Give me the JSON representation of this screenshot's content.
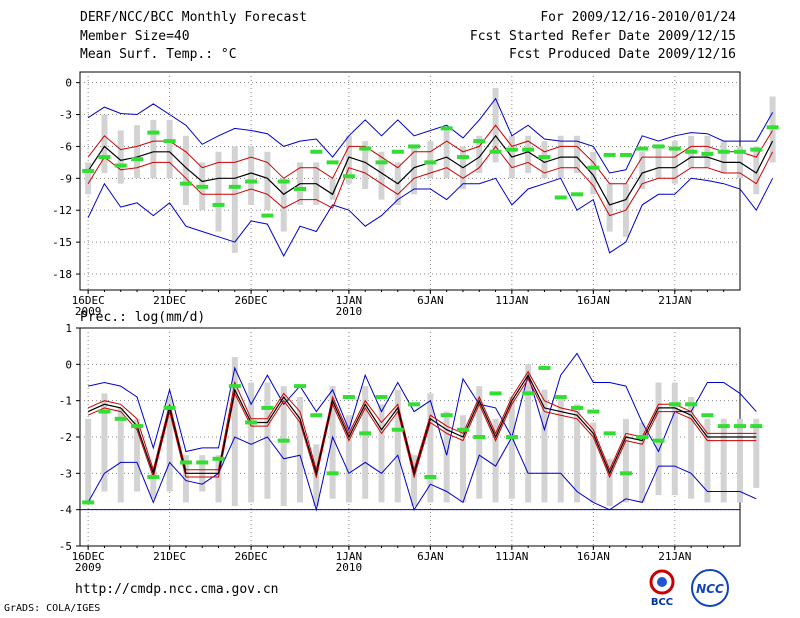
{
  "header": {
    "title": "DERF/NCC/BCC Monthly Forecast",
    "member_size": "Member Size=40",
    "forecast_period": "For 2009/12/16-2010/01/24",
    "started_refer_date": "Fcst Started Refer Date 2009/12/15",
    "produced_date": "Fcst Produced Date 2009/12/16"
  },
  "footer": {
    "url": "http://cmdp.ncc.cma.gov.cn",
    "grads_credit": "GrADS: COLA/IGES",
    "logo_bcc": "BCC",
    "logo_ncc": "NCC"
  },
  "colors": {
    "max_min": "#0000cc",
    "spread": "#cc0000",
    "mean": "#000000",
    "obs": "#33dd33",
    "box": "#d3d3d3",
    "grid": "#888888"
  },
  "chart_data": [
    {
      "type": "line",
      "ylabel": "Mean Surf. Temp.: °C",
      "ylim": [
        -19.5,
        1.0
      ],
      "yticks": [
        0,
        -3,
        -6,
        -9,
        -12,
        -15,
        -18
      ],
      "xlim": [
        0.5,
        41.0
      ],
      "xticks": [
        {
          "pos": 1,
          "label": "16DEC",
          "sub": "2009"
        },
        {
          "pos": 6,
          "label": "21DEC"
        },
        {
          "pos": 11,
          "label": "26DEC"
        },
        {
          "pos": 17,
          "label": "1JAN",
          "sub": "2010"
        },
        {
          "pos": 22,
          "label": "6JAN"
        },
        {
          "pos": 27,
          "label": "11JAN"
        },
        {
          "pos": 32,
          "label": "16JAN"
        },
        {
          "pos": 37,
          "label": "21JAN"
        }
      ],
      "series": [
        {
          "name": "max",
          "values": [
            -3.3,
            -2.3,
            -2.9,
            -3.0,
            -2.0,
            -3.0,
            -4.0,
            -5.8,
            -5.0,
            -4.3,
            -4.5,
            -4.8,
            -6.0,
            -5.5,
            -5.3,
            -7.0,
            -5.0,
            -3.5,
            -5.0,
            -3.5,
            -5.0,
            -4.5,
            -4.0,
            -5.2,
            -3.5,
            -1.5,
            -5.0,
            -4.0,
            -5.3,
            -5.5,
            -5.5,
            -6.0,
            -8.5,
            -8.2,
            -5.0,
            -5.5,
            -5.0,
            -4.7,
            -4.8,
            -5.5,
            -5.5,
            -5.5,
            -2.8
          ]
        },
        {
          "name": "spread_upper",
          "values": [
            -7.0,
            -5.0,
            -6.3,
            -6.0,
            -5.5,
            -5.5,
            -6.5,
            -8.0,
            -7.5,
            -7.5,
            -7.0,
            -7.5,
            -9.0,
            -8.0,
            -8.0,
            -9.0,
            -6.0,
            -6.0,
            -7.0,
            -8.0,
            -6.5,
            -6.5,
            -5.5,
            -6.5,
            -6.0,
            -4.0,
            -6.0,
            -5.5,
            -6.5,
            -6.0,
            -6.0,
            -7.5,
            -9.5,
            -9.5,
            -7.0,
            -7.0,
            -7.0,
            -6.0,
            -6.0,
            -6.5,
            -6.5,
            -7.0,
            -4.5
          ]
        },
        {
          "name": "mean",
          "values": [
            -8.3,
            -6.0,
            -7.3,
            -7.0,
            -6.5,
            -6.5,
            -8.0,
            -9.3,
            -9.0,
            -9.0,
            -8.5,
            -9.0,
            -10.5,
            -9.5,
            -9.5,
            -10.5,
            -7.0,
            -7.5,
            -8.5,
            -9.5,
            -8.0,
            -7.5,
            -7.0,
            -8.0,
            -7.0,
            -5.0,
            -7.0,
            -6.5,
            -7.5,
            -7.0,
            -7.0,
            -8.7,
            -11.5,
            -11.0,
            -8.5,
            -8.0,
            -8.0,
            -7.0,
            -7.0,
            -7.5,
            -7.5,
            -8.5,
            -5.5
          ]
        },
        {
          "name": "spread_lower",
          "values": [
            -9.5,
            -7.0,
            -8.2,
            -8.0,
            -7.5,
            -7.5,
            -9.0,
            -10.5,
            -10.5,
            -10.5,
            -10.0,
            -10.5,
            -11.8,
            -11.0,
            -11.0,
            -11.8,
            -8.0,
            -8.5,
            -9.5,
            -10.5,
            -9.0,
            -8.5,
            -8.0,
            -9.0,
            -8.0,
            -6.0,
            -8.0,
            -7.5,
            -8.5,
            -8.0,
            -8.0,
            -9.7,
            -12.5,
            -12.0,
            -9.5,
            -9.0,
            -9.0,
            -8.0,
            -8.0,
            -8.5,
            -8.5,
            -9.5,
            -6.5
          ]
        },
        {
          "name": "min",
          "values": [
            -12.7,
            -9.5,
            -11.7,
            -11.3,
            -12.5,
            -11.3,
            -13.5,
            -14.0,
            -14.5,
            -15.0,
            -13.0,
            -13.3,
            -16.3,
            -13.5,
            -14.0,
            -11.5,
            -12.0,
            -13.5,
            -12.5,
            -11.0,
            -10.0,
            -10.0,
            -11.0,
            -9.5,
            -9.5,
            -9.0,
            -11.5,
            -10.0,
            -9.5,
            -9.0,
            -12.0,
            -11.0,
            -16.0,
            -15.0,
            -11.5,
            -10.5,
            -10.5,
            -9.0,
            -9.2,
            -9.5,
            -10.0,
            -12.0,
            -9.0
          ]
        },
        {
          "name": "box_high",
          "values": [
            -8.0,
            -4.5,
            -5.5,
            -5.0,
            -4.5,
            -4.5,
            -6.0,
            -8.0,
            -7.5,
            -7.0,
            -7.0,
            -7.0,
            -9.5,
            -8.0,
            -8.0,
            -9.5,
            -5.5,
            -6.0,
            -7.0,
            -8.0,
            -6.5,
            -6.0,
            -5.5,
            -6.5,
            -5.5,
            -3.5,
            -5.5,
            -5.5,
            -6.0,
            -5.5,
            -5.5,
            -7.0,
            -10.0,
            -10.0,
            -7.0,
            -6.5,
            -6.0,
            -5.5,
            -5.5,
            -6.0,
            -6.5,
            -6.5,
            -4.0
          ]
        },
        {
          "name": "box_low",
          "values": [
            -10.0,
            -8.0,
            -8.5,
            -8.5,
            -8.0,
            -8.0,
            -10.5,
            -11.5,
            -13.0,
            -13.5,
            -10.5,
            -11.5,
            -13.5,
            -10.5,
            -10.5,
            -10.5,
            -9.0,
            -9.5,
            -10.0,
            -11.0,
            -10.0,
            -8.5,
            -8.5,
            -9.5,
            -8.0,
            -7.0,
            -8.5,
            -8.0,
            -8.5,
            -8.5,
            -8.0,
            -10.0,
            -13.0,
            -13.5,
            -9.5,
            -8.5,
            -9.0,
            -7.5,
            -7.5,
            -8.0,
            -8.5,
            -10.0,
            -7.0
          ]
        },
        {
          "name": "box_top",
          "values": [
            -7.5,
            -3.0,
            -4.5,
            -4.0,
            -3.5,
            -3.5,
            -5.0,
            -7.5,
            -6.5,
            -6.0,
            -6.0,
            -6.5,
            -9.0,
            -7.5,
            -7.5,
            -9.0,
            -5.0,
            -5.5,
            -6.5,
            -7.5,
            -6.0,
            -5.5,
            -4.5,
            -6.0,
            -5.0,
            -0.5,
            -5.0,
            -5.0,
            -5.5,
            -5.0,
            -5.0,
            -6.5,
            -9.5,
            -9.5,
            -6.5,
            -6.0,
            -5.5,
            -5.0,
            -5.0,
            -5.5,
            -6.0,
            -6.0,
            -1.3
          ]
        },
        {
          "name": "box_bottom",
          "values": [
            -10.5,
            -8.5,
            -9.5,
            -9.0,
            -9.0,
            -9.0,
            -11.5,
            -12.0,
            -14.0,
            -16.0,
            -11.5,
            -12.0,
            -14.0,
            -11.5,
            -11.5,
            -11.0,
            -9.5,
            -10.0,
            -11.0,
            -11.5,
            -10.5,
            -9.0,
            -9.0,
            -10.0,
            -8.5,
            -7.5,
            -9.0,
            -8.5,
            -9.0,
            -9.0,
            -8.5,
            -10.5,
            -14.0,
            -14.5,
            -10.0,
            -9.0,
            -9.5,
            -8.0,
            -8.0,
            -8.5,
            -9.0,
            -10.5,
            -7.5
          ]
        },
        {
          "name": "observed_climate",
          "values": [
            -8.3,
            -7.0,
            -7.8,
            -7.2,
            -4.7,
            -5.5,
            -9.5,
            -9.8,
            -11.5,
            -9.8,
            -9.3,
            -12.5,
            -9.3,
            -10.0,
            -6.5,
            -7.5,
            -8.8,
            -6.2,
            -7.5,
            -6.5,
            -6.0,
            -7.5,
            -4.3,
            -7.0,
            -5.5,
            -6.5,
            -6.3,
            -6.3,
            -7.0,
            -10.8,
            -10.5,
            -8.0,
            -6.8,
            -6.8,
            -6.2,
            -6.0,
            -6.2,
            -6.5,
            -6.7,
            -6.5,
            -6.5,
            -6.3,
            -4.2
          ]
        }
      ]
    },
    {
      "type": "line",
      "ylabel": "Prec.: log(mm/d)",
      "ylim": [
        -5,
        1
      ],
      "yticks": [
        1,
        0,
        -1,
        -2,
        -3,
        -4,
        -5
      ],
      "xlim": [
        0.5,
        41.0
      ],
      "xticks": [
        {
          "pos": 1,
          "label": "16DEC",
          "sub": "2009"
        },
        {
          "pos": 6,
          "label": "21DEC"
        },
        {
          "pos": 11,
          "label": "26DEC"
        },
        {
          "pos": 17,
          "label": "1JAN",
          "sub": "2010"
        },
        {
          "pos": 22,
          "label": "6JAN"
        },
        {
          "pos": 27,
          "label": "11JAN"
        },
        {
          "pos": 32,
          "label": "16JAN"
        },
        {
          "pos": 37,
          "label": "21JAN"
        }
      ],
      "series": [
        {
          "name": "max",
          "values": [
            -0.6,
            -0.5,
            -0.6,
            -0.9,
            -2.3,
            -0.7,
            -2.4,
            -2.3,
            -2.3,
            -0.1,
            -1.1,
            -0.3,
            -1.1,
            -0.6,
            -1.3,
            -0.7,
            -1.8,
            -0.3,
            -1.3,
            -0.5,
            -1.3,
            -1.0,
            -2.5,
            -0.4,
            -1.1,
            -1.2,
            -2.0,
            -0.3,
            -1.8,
            -0.3,
            0.3,
            -0.5,
            -0.5,
            -0.6,
            -1.6,
            -2.4,
            -1.3,
            -1.3,
            -0.5,
            -0.5,
            -0.8,
            -1.3
          ],
          "offset": 0
        },
        {
          "name": "mean",
          "values": [
            -1.3,
            -1.1,
            -1.2,
            -1.7,
            -3.0,
            -1.2,
            -3.0,
            -3.0,
            -3.0,
            -0.7,
            -1.6,
            -1.6,
            -0.9,
            -1.5,
            -3.0,
            -1.0,
            -2.0,
            -1.1,
            -1.8,
            -1.2,
            -3.0,
            -1.5,
            -1.8,
            -2.0,
            -1.0,
            -2.0,
            -1.0,
            -0.3,
            -1.2,
            -1.3,
            -1.4,
            -1.9,
            -3.0,
            -2.0,
            -2.1,
            -1.2,
            -1.2,
            -1.4,
            -2.0,
            -2.0,
            -2.0,
            -2.0
          ],
          "offset": 0
        },
        {
          "name": "spread_upper",
          "values": [
            -1.2,
            -1.0,
            -1.1,
            -1.5,
            -2.9,
            -1.1,
            -2.9,
            -2.9,
            -2.9,
            -0.5,
            -1.5,
            -1.5,
            -0.8,
            -1.3,
            -2.9,
            -0.9,
            -1.9,
            -1.0,
            -1.6,
            -1.1,
            -2.9,
            -1.4,
            -1.7,
            -1.9,
            -0.9,
            -1.9,
            -0.9,
            -0.2,
            -1.0,
            -1.2,
            -1.3,
            -1.8,
            -2.9,
            -1.9,
            -2.0,
            -1.1,
            -1.1,
            -1.3,
            -1.9,
            -1.9,
            -1.9,
            -1.9
          ],
          "offset": 0
        },
        {
          "name": "spread_lower",
          "values": [
            -1.4,
            -1.2,
            -1.3,
            -1.8,
            -3.1,
            -1.3,
            -3.1,
            -3.1,
            -3.1,
            -0.8,
            -1.7,
            -1.7,
            -1.0,
            -1.6,
            -3.1,
            -1.1,
            -2.1,
            -1.2,
            -1.9,
            -1.3,
            -3.1,
            -1.6,
            -1.9,
            -2.1,
            -1.1,
            -2.1,
            -1.1,
            -0.4,
            -1.3,
            -1.4,
            -1.5,
            -2.0,
            -3.1,
            -2.1,
            -2.2,
            -1.3,
            -1.3,
            -1.5,
            -2.1,
            -2.1,
            -2.1,
            -2.1
          ],
          "offset": 0
        },
        {
          "name": "min",
          "values": [
            -3.8,
            -3.0,
            -2.7,
            -2.7,
            -3.8,
            -2.7,
            -3.2,
            -3.3,
            -3.0,
            -2.0,
            -2.2,
            -2.0,
            -2.6,
            -2.5,
            -4.0,
            -2.0,
            -3.0,
            -2.7,
            -3.0,
            -2.5,
            -4.0,
            -3.3,
            -3.5,
            -3.8,
            -2.5,
            -2.8,
            -2.0,
            -3.0,
            -3.0,
            -3.0,
            -3.5,
            -3.8,
            -4.0,
            -3.7,
            -3.8,
            -2.8,
            -2.8,
            -3.0,
            -3.5,
            -3.5,
            -3.5,
            -3.7
          ],
          "offset": 0
        },
        {
          "name": "box_top",
          "values": [
            -1.5,
            -0.8,
            -1.2,
            -1.5,
            -2.8,
            -0.9,
            -2.5,
            -2.5,
            -2.5,
            0.2,
            -0.5,
            -0.5,
            -0.6,
            -0.9,
            -2.2,
            -0.6,
            -1.4,
            -0.6,
            -1.1,
            -0.7,
            -2.5,
            -0.8,
            -1.3,
            -1.4,
            -0.6,
            -1.5,
            -0.9,
            0.0,
            -0.7,
            -0.9,
            -1.1,
            -1.6,
            -2.6,
            -1.5,
            -1.6,
            -0.5,
            -0.5,
            -0.9,
            -1.5,
            -1.5,
            -1.5,
            -1.5
          ],
          "offset": 0
        },
        {
          "name": "box_bottom",
          "values": [
            -3.8,
            -3.5,
            -3.8,
            -3.5,
            -3.7,
            -3.5,
            -3.8,
            -3.5,
            -3.8,
            -3.9,
            -3.8,
            -3.7,
            -3.9,
            -3.8,
            -3.9,
            -3.7,
            -3.8,
            -3.7,
            -3.8,
            -3.8,
            -3.9,
            -3.8,
            -3.8,
            -3.8,
            -3.7,
            -3.8,
            -3.7,
            -3.8,
            -3.8,
            -3.8,
            -3.8,
            -3.8,
            -3.9,
            -3.8,
            -3.8,
            -3.6,
            -3.6,
            -3.7,
            -3.8,
            -3.8,
            -3.8,
            -3.4
          ],
          "offset": 0
        },
        {
          "name": "observed_climate",
          "values": [
            -3.8,
            -1.3,
            -1.5,
            -1.7,
            -3.1,
            -1.2,
            -2.7,
            -2.7,
            -2.6,
            -0.6,
            -1.6,
            -1.2,
            -2.1,
            -0.6,
            -1.4,
            -3.0,
            -0.9,
            -1.9,
            -0.9,
            -1.8,
            -1.1,
            -3.1,
            -1.4,
            -1.8,
            -2.0,
            -0.8,
            -2.0,
            -0.8,
            -0.1,
            -0.9,
            -1.2,
            -1.3,
            -1.9,
            -3.0,
            -2.0,
            -2.1,
            -1.1,
            -1.1,
            -1.4,
            -1.7,
            -1.7,
            -1.7
          ],
          "offset": 0
        }
      ]
    }
  ]
}
